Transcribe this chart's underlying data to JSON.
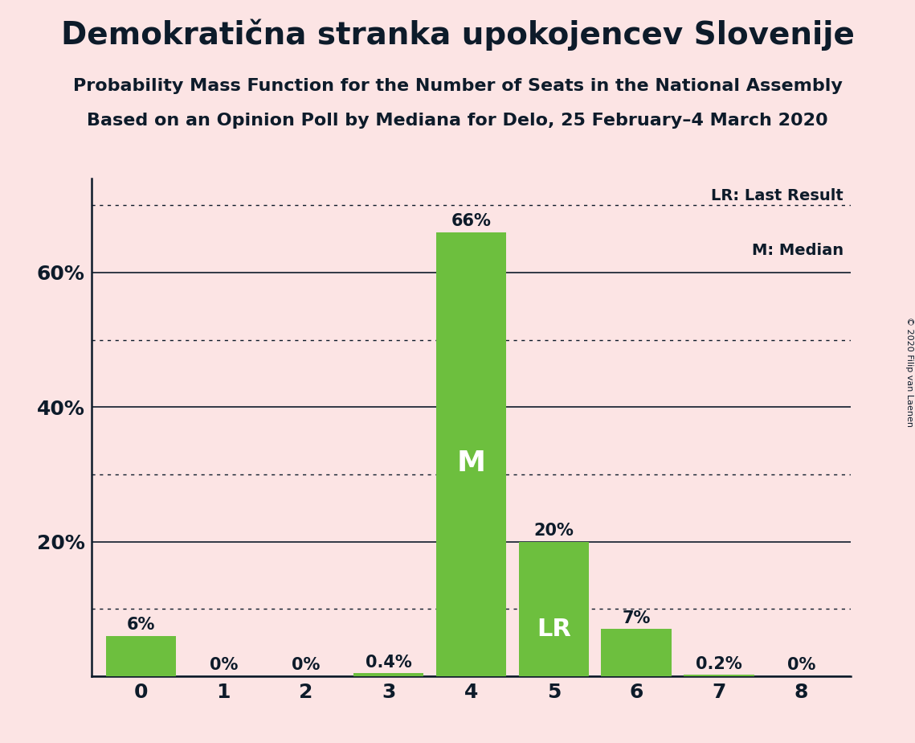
{
  "title": "Demokratična stranka upokojencev Slovenije",
  "subtitle1": "Probability Mass Function for the Number of Seats in the National Assembly",
  "subtitle2": "Based on an Opinion Poll by Mediana for Delo, 25 February–4 March 2020",
  "copyright": "© 2020 Filip van Laenen",
  "seats": [
    0,
    1,
    2,
    3,
    4,
    5,
    6,
    7,
    8
  ],
  "probabilities": [
    0.06,
    0.0,
    0.0,
    0.004,
    0.66,
    0.2,
    0.07,
    0.002,
    0.0
  ],
  "bar_labels": [
    "6%",
    "0%",
    "0%",
    "0.4%",
    "66%",
    "20%",
    "7%",
    "0.2%",
    "0%"
  ],
  "bar_color": "#6dbf3e",
  "median_seat": 4,
  "lr_seat": 5,
  "median_label": "M",
  "lr_label": "LR",
  "legend_lr": "LR: Last Result",
  "legend_m": "M: Median",
  "background_color": "#fce4e4",
  "text_color": "#0d1b2a",
  "label_color_inside": "#ffffff",
  "label_color_outside": "#0d1b2a",
  "yticks": [
    0.2,
    0.4,
    0.6
  ],
  "ytick_labels": [
    "20%",
    "40%",
    "60%"
  ],
  "ylim": [
    0,
    0.74
  ],
  "dotted_lines": [
    0.1,
    0.3,
    0.5,
    0.7
  ],
  "solid_lines": [
    0.0,
    0.2,
    0.4,
    0.6
  ],
  "title_fontsize": 28,
  "subtitle_fontsize": 16,
  "bar_label_fontsize": 15,
  "axis_label_fontsize": 18,
  "inner_label_fontsize": 26
}
